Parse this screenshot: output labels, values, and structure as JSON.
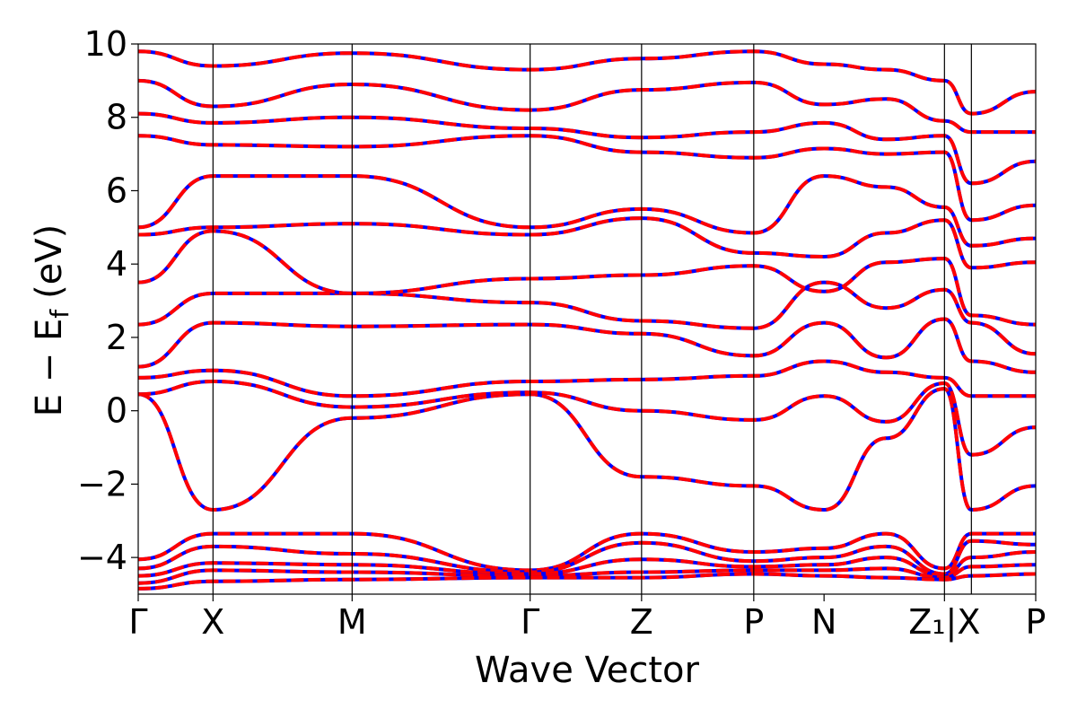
{
  "chart_data": {
    "type": "line",
    "xlabel": "Wave Vector",
    "ylabel": "E − E_f (eV)",
    "ylabel_main": "E − E",
    "ylabel_sub": "f",
    "ylabel_unit": "(eV)",
    "ylim": [
      -5,
      10
    ],
    "xlim": [
      0,
      12.0
    ],
    "yticks": [
      -4,
      -2,
      0,
      2,
      4,
      6,
      8,
      10
    ],
    "ytick_labels": [
      "−4",
      "−2",
      "0",
      "2",
      "4",
      "6",
      "8",
      "10"
    ],
    "grid": false,
    "legend": "none",
    "kpoints": [
      {
        "label": "Γ",
        "x": 0.0
      },
      {
        "label": "X",
        "x": 1.0
      },
      {
        "label": "M",
        "x": 2.86
      },
      {
        "label": "Γ",
        "x": 5.24
      },
      {
        "label": "Z",
        "x": 6.73
      },
      {
        "label": "P",
        "x": 8.23
      },
      {
        "label": "N",
        "x": 9.17
      },
      {
        "label": "Z₁|X",
        "x": 10.78
      },
      {
        "label": "P",
        "x": 12.0
      }
    ],
    "kpoint_lines_x": [
      1.0,
      2.86,
      5.24,
      6.73,
      8.23,
      10.78,
      11.14
    ],
    "series": [
      {
        "values": [
          -4.05,
          -3.35,
          -3.35,
          -4.35,
          -3.35,
          -3.85,
          -3.75,
          -3.35,
          -4.3,
          -3.35,
          -3.35
        ]
      },
      {
        "values": [
          -4.3,
          -3.7,
          -3.9,
          -4.4,
          -3.6,
          -4.1,
          -4.0,
          -3.7,
          -4.45,
          -3.55,
          -3.65
        ]
      },
      {
        "values": [
          -4.5,
          -4.15,
          -4.2,
          -4.45,
          -4.05,
          -4.25,
          -4.2,
          -4.0,
          -4.5,
          -4.0,
          -3.85
        ]
      },
      {
        "values": [
          -4.7,
          -4.35,
          -4.4,
          -4.5,
          -4.4,
          -4.35,
          -4.35,
          -4.3,
          -4.55,
          -4.25,
          -4.2
        ]
      },
      {
        "values": [
          -4.85,
          -4.65,
          -4.6,
          -4.55,
          -4.55,
          -4.45,
          -4.5,
          -4.55,
          -4.6,
          -4.5,
          -4.45
        ]
      },
      {
        "values": [
          0.45,
          -2.7,
          -0.2,
          0.45,
          -1.8,
          -2.05,
          -2.7,
          -0.75,
          0.6,
          -2.7,
          -2.05
        ]
      },
      {
        "values": [
          0.45,
          0.8,
          0.1,
          0.5,
          0.0,
          -0.25,
          0.4,
          -0.3,
          0.75,
          -1.2,
          -0.45
        ]
      },
      {
        "values": [
          0.9,
          1.1,
          0.4,
          0.8,
          0.85,
          0.95,
          1.35,
          1.05,
          0.9,
          0.4,
          0.4
        ]
      },
      {
        "values": [
          1.2,
          2.4,
          2.3,
          2.35,
          2.1,
          1.5,
          2.4,
          1.45,
          2.5,
          1.35,
          1.05
        ]
      },
      {
        "values": [
          2.35,
          3.2,
          3.2,
          2.95,
          2.45,
          2.25,
          3.5,
          2.8,
          3.3,
          2.4,
          1.55
        ]
      },
      {
        "values": [
          3.5,
          4.9,
          3.2,
          3.6,
          3.7,
          3.95,
          3.25,
          4.05,
          4.15,
          2.6,
          2.35
        ]
      },
      {
        "values": [
          4.8,
          5.0,
          5.1,
          4.8,
          5.25,
          4.3,
          4.2,
          4.85,
          5.2,
          3.9,
          4.05
        ]
      },
      {
        "values": [
          5.0,
          6.4,
          6.4,
          5.0,
          5.5,
          4.85,
          6.4,
          6.1,
          5.55,
          4.5,
          4.7
        ]
      },
      {
        "values": [
          7.5,
          7.25,
          7.2,
          7.5,
          7.05,
          6.9,
          7.15,
          7.0,
          7.05,
          5.2,
          5.6
        ]
      },
      {
        "values": [
          8.1,
          7.85,
          8.0,
          7.7,
          7.45,
          7.6,
          7.85,
          7.4,
          7.5,
          6.2,
          6.8
        ]
      },
      {
        "values": [
          9.0,
          8.3,
          8.9,
          8.2,
          8.75,
          8.95,
          8.35,
          8.5,
          7.9,
          7.6,
          7.6
        ]
      },
      {
        "values": [
          9.8,
          9.4,
          9.75,
          9.3,
          9.6,
          9.8,
          9.45,
          9.3,
          9.0,
          8.1,
          8.7
        ]
      }
    ]
  }
}
